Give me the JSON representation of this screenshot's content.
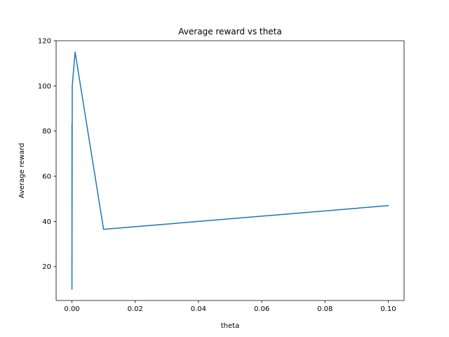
{
  "chart_data": {
    "type": "line",
    "title": "Average reward vs theta",
    "xlabel": "theta",
    "ylabel": "Average reward",
    "xlim": [
      -0.005,
      0.105
    ],
    "ylim": [
      5,
      120
    ],
    "xticks": [
      0.0,
      0.02,
      0.04,
      0.06,
      0.08,
      0.1
    ],
    "xtick_labels": [
      "0.00",
      "0.02",
      "0.04",
      "0.06",
      "0.08",
      "0.10"
    ],
    "yticks": [
      20,
      40,
      60,
      80,
      100,
      120
    ],
    "ytick_labels": [
      "20",
      "40",
      "60",
      "80",
      "100",
      "120"
    ],
    "grid": false,
    "series": [
      {
        "color": "#1f77b4",
        "x": [
          1e-05,
          1e-06,
          1e-07,
          0.0001,
          0.001,
          0.01,
          0.1
        ],
        "y": [
          83,
          10,
          11,
          100,
          115,
          36.5,
          47
        ]
      }
    ]
  }
}
